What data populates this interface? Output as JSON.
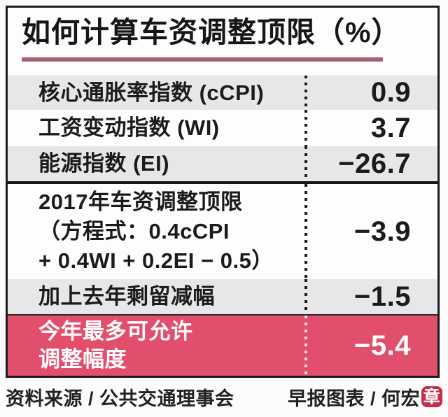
{
  "title": {
    "text": "如何计算车资调整顶限（%）"
  },
  "colors": {
    "accent_pink": "#e24f6d",
    "title_underline": "#a7606f",
    "row_gray": "#e8e7e7",
    "seal_red": "#c62b4b",
    "frame_border": "#1c1c1c"
  },
  "table": {
    "rows": [
      {
        "label": "核心通胀率指数 (cCPI)",
        "value": "0.9"
      },
      {
        "label": "工资变动指数 (WI)",
        "value": "3.7"
      },
      {
        "label": "能源指数 (EI)",
        "value": "−26.7"
      },
      {
        "label": "2017年车资调整顶限\n（方程式：0.4cCPI\n+ 0.4WI + 0.2EI − 0.5）",
        "value": "−3.9"
      },
      {
        "label": "加上去年剩留减幅",
        "value": "−1.5"
      },
      {
        "label": "今年最多可允许\n调整幅度",
        "value": "−5.4"
      }
    ]
  },
  "footer": {
    "source": "资料来源 / 公共交通理事会",
    "byline": "早报图表 / 何宏",
    "seal_char": "章"
  }
}
